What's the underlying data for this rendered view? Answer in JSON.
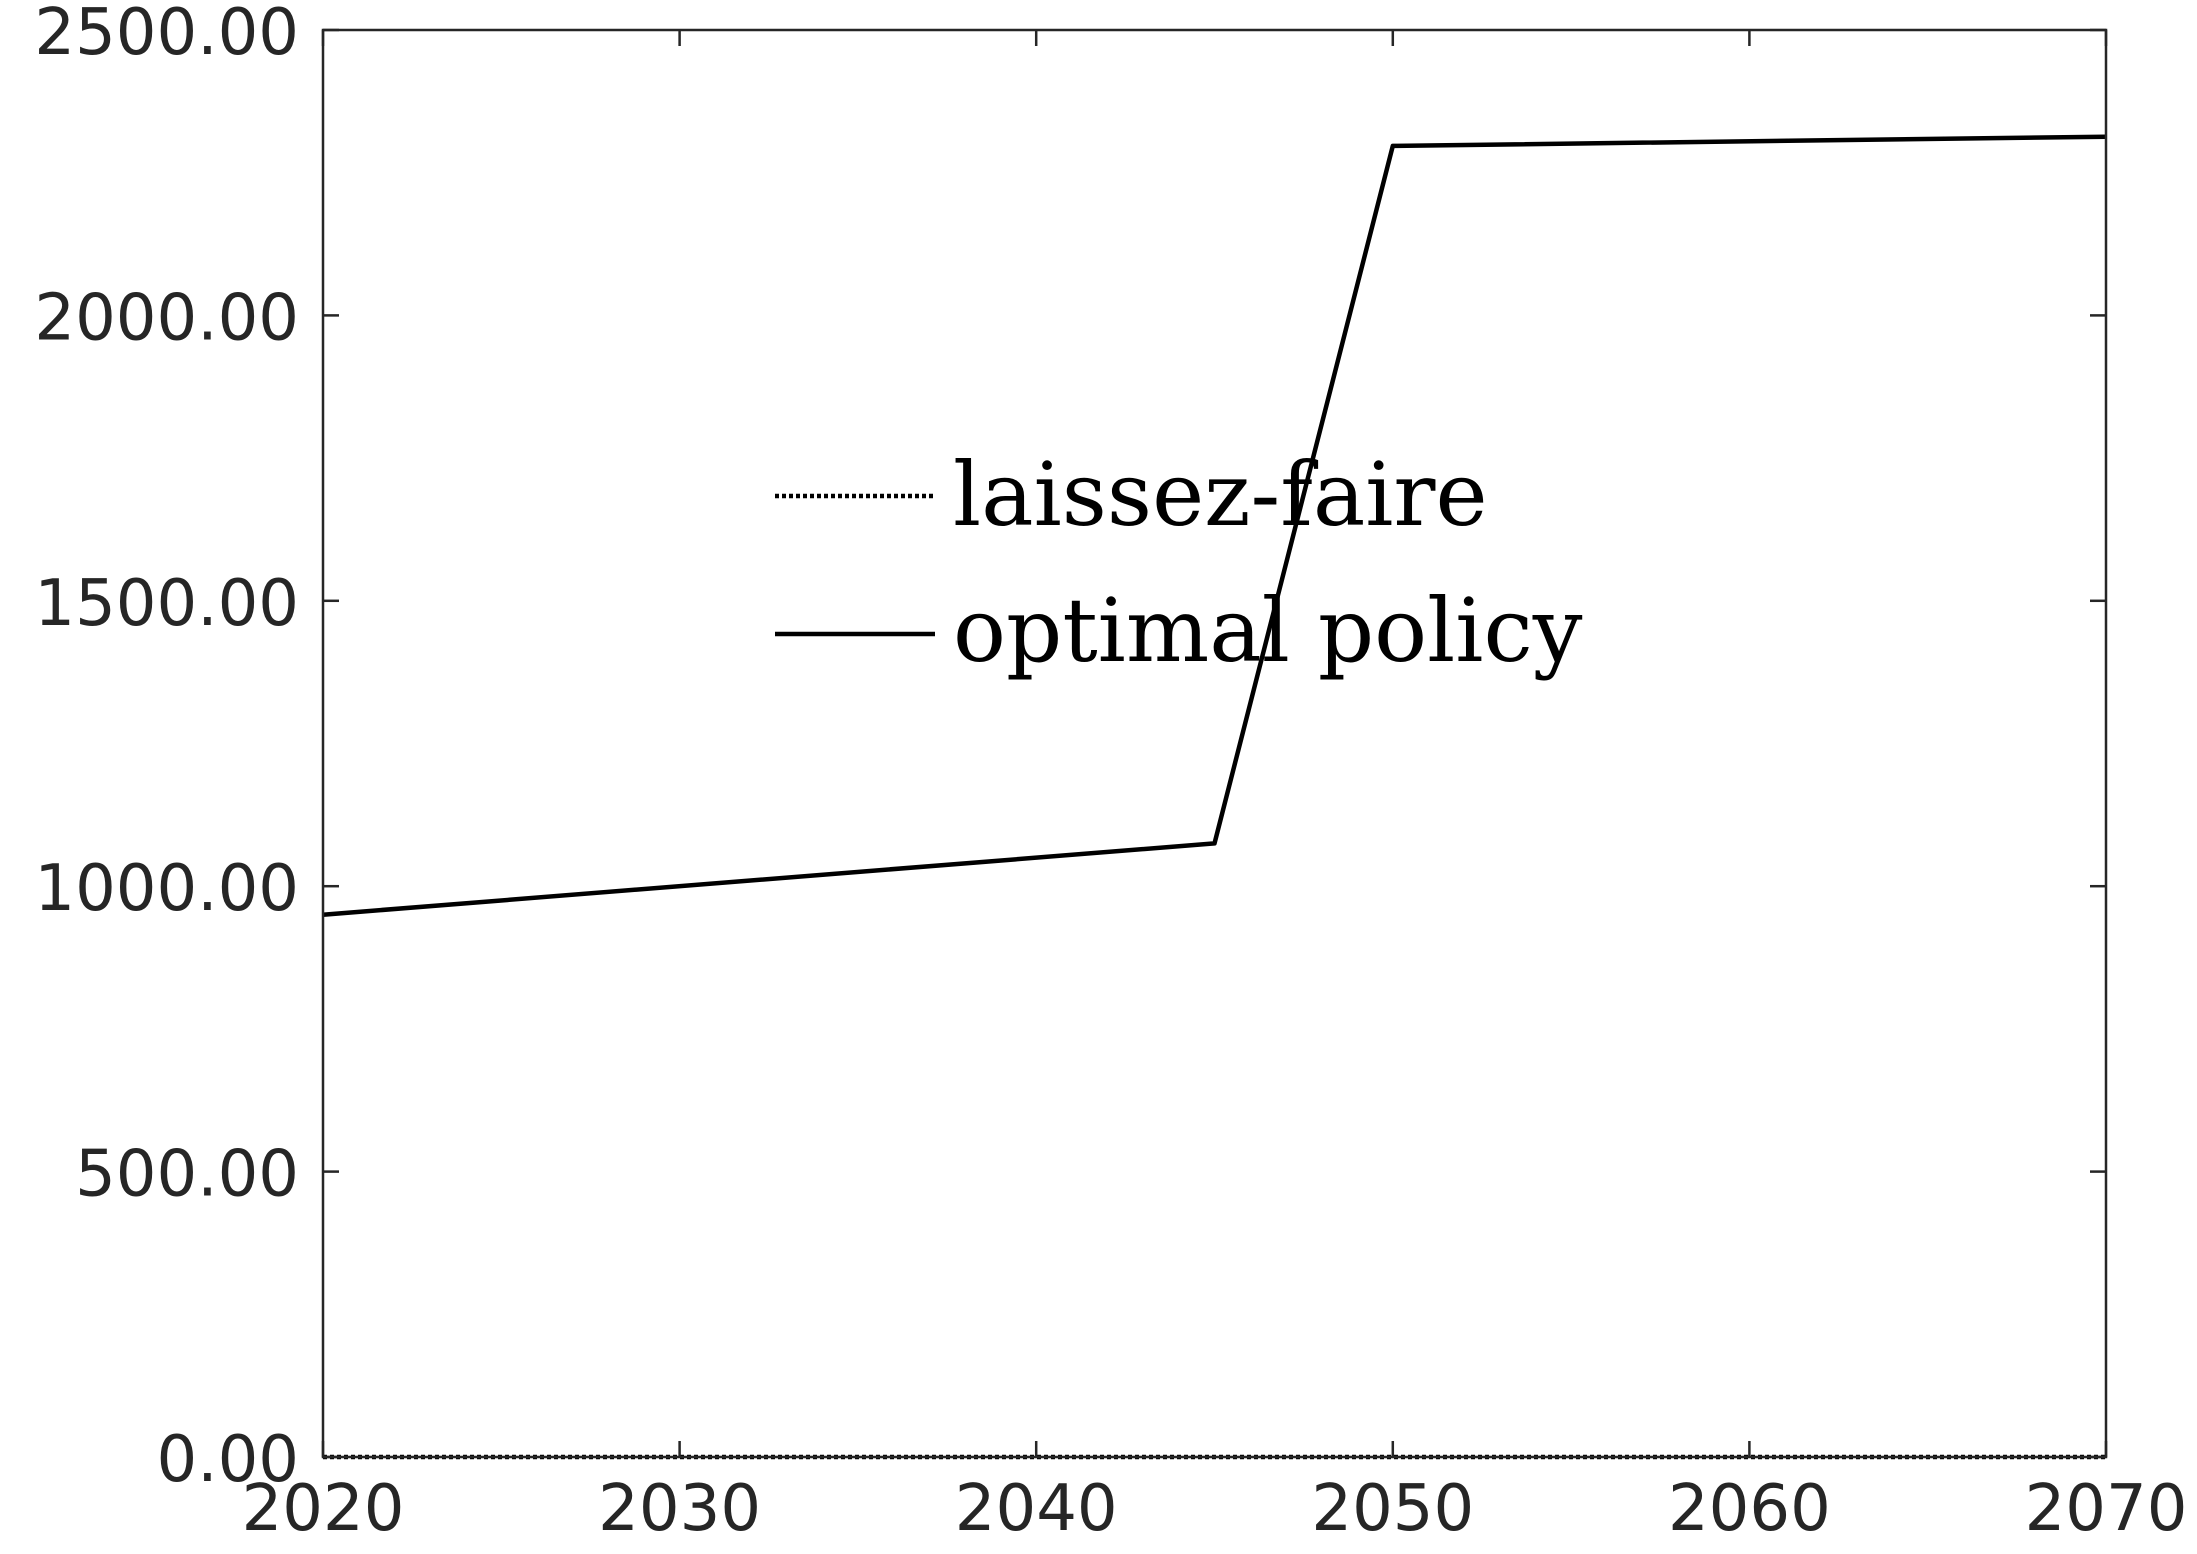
{
  "chart_data": {
    "type": "line",
    "title": "",
    "xlabel": "",
    "ylabel": "",
    "xlim": [
      2020,
      2070
    ],
    "ylim": [
      0,
      2500
    ],
    "x_ticks": [
      2020,
      2030,
      2040,
      2050,
      2060,
      2070
    ],
    "x_tick_labels": [
      "2020",
      "2030",
      "2040",
      "2050",
      "2060",
      "2070"
    ],
    "y_ticks": [
      0,
      500,
      1000,
      1500,
      2000,
      2500
    ],
    "y_tick_labels": [
      "0.00",
      "500.00",
      "1000.00",
      "1500.00",
      "2000.00",
      "2500.00"
    ],
    "grid": false,
    "legend_position": "center",
    "series": [
      {
        "name": "laissez-faire",
        "line_style": "dotted",
        "color": "#000000",
        "x": [
          2020,
          2025,
          2030,
          2035,
          2040,
          2045,
          2050,
          2055,
          2060,
          2065,
          2070
        ],
        "y": [
          0,
          0,
          0,
          0,
          0,
          0,
          0,
          0,
          0,
          0,
          0
        ]
      },
      {
        "name": "optimal policy",
        "line_style": "solid",
        "color": "#000000",
        "x": [
          2020,
          2045,
          2050,
          2070
        ],
        "y": [
          950,
          1075,
          2297,
          2313
        ]
      }
    ]
  }
}
